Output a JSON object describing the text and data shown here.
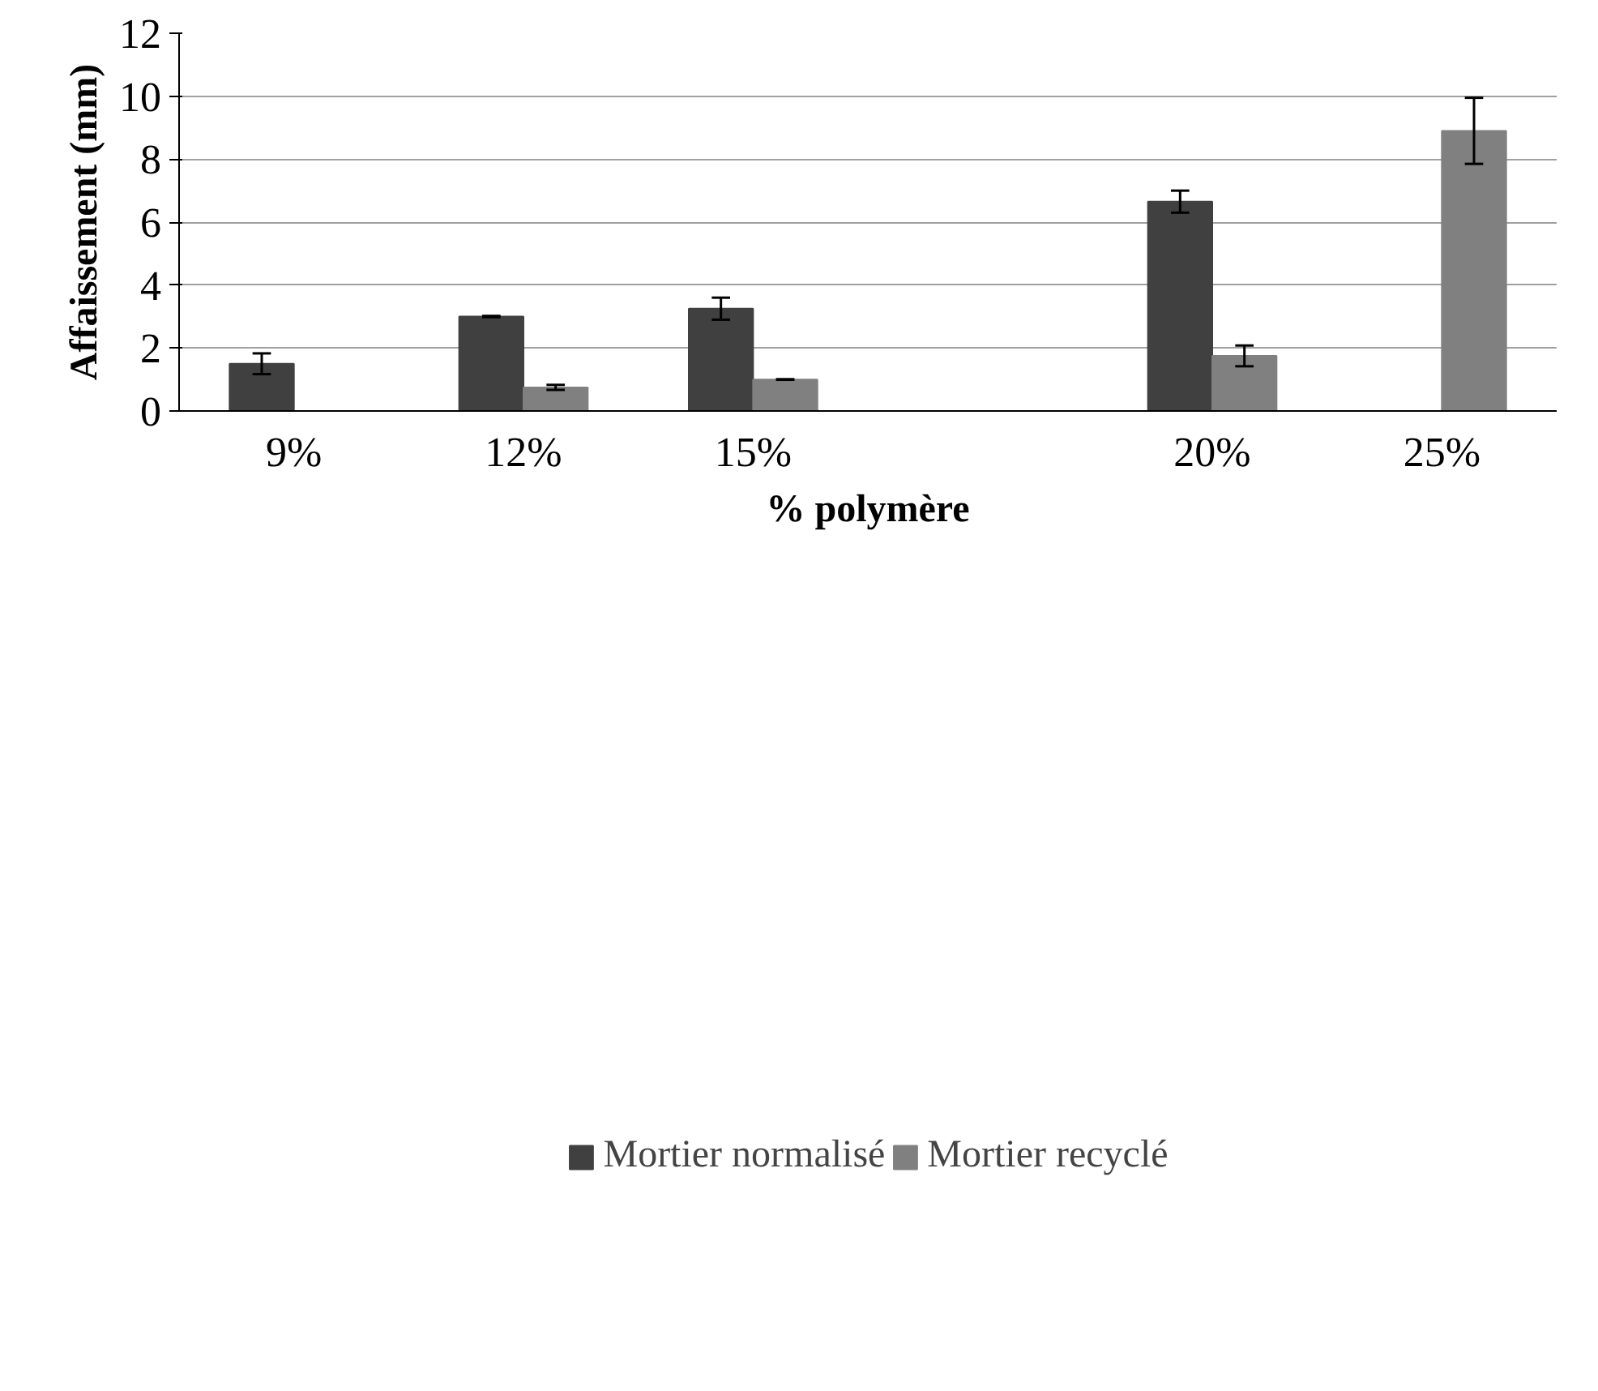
{
  "chart_data": {
    "type": "bar",
    "xlabel": "% polymère",
    "ylabel": "Affaissement (mm)",
    "categories": [
      "9%",
      "12%",
      "15%",
      null,
      "20%",
      "25%"
    ],
    "series": [
      {
        "name": "Mortier normalisé",
        "color": "#404040",
        "values": [
          1.5,
          3.0,
          3.25,
          null,
          6.65,
          null
        ],
        "errors": [
          0.33,
          0.02,
          0.35,
          null,
          0.35,
          null
        ]
      },
      {
        "name": "Mortier recyclé",
        "color": "#808080",
        "values": [
          null,
          0.75,
          1.0,
          null,
          1.75,
          8.9
        ],
        "errors": [
          null,
          0.08,
          0.01,
          null,
          0.33,
          1.05
        ]
      }
    ],
    "ylim": [
      0,
      12
    ],
    "yticks": [
      0,
      2,
      4,
      6,
      8,
      10,
      12
    ],
    "grid": "y",
    "legend": "bottom"
  }
}
